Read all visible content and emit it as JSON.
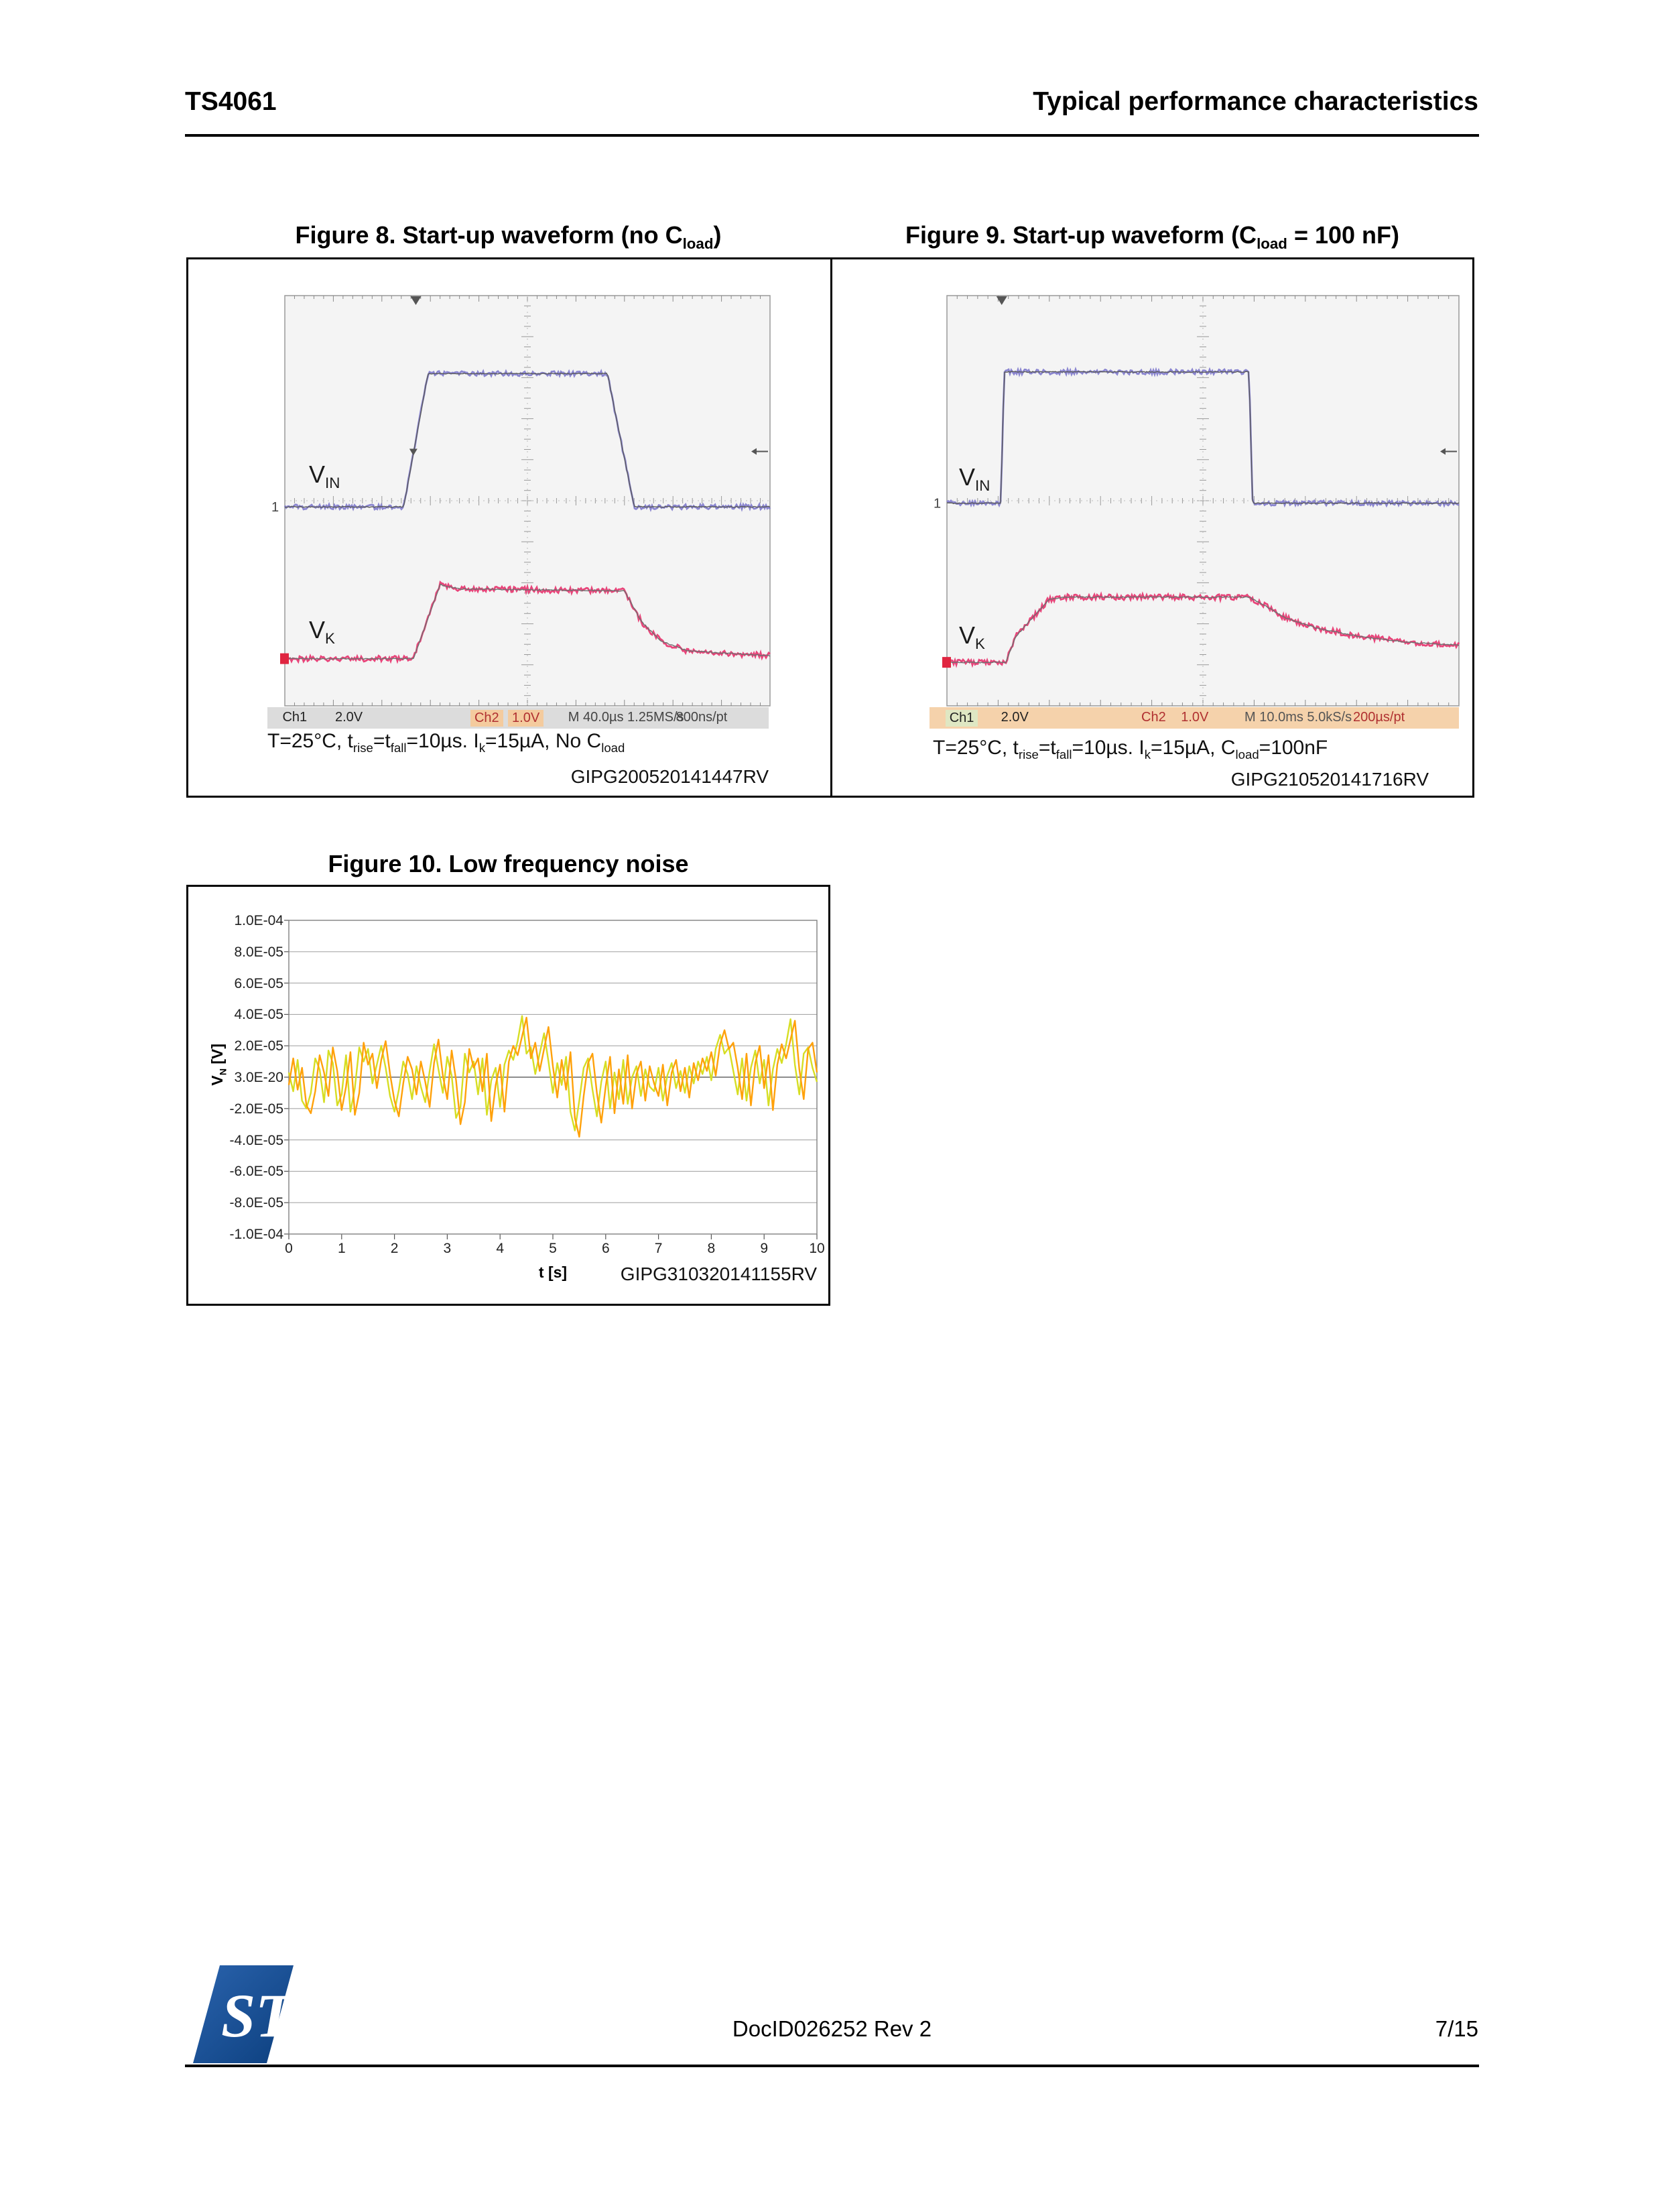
{
  "header": {
    "product": "TS4061",
    "section": "Typical performance characteristics"
  },
  "footer": {
    "doc_id": "DocID026252 Rev 2",
    "page_num": "7/15",
    "logo_colors": {
      "blue_dark": "#0c3f7e",
      "blue_light": "#2a63ad"
    }
  },
  "figure8": {
    "title_segs": [
      {
        "t": "Figure 8. Start-up waveform (no C"
      },
      {
        "t": "load",
        "s": 1
      },
      {
        "t": ")"
      }
    ],
    "caption_segs": [
      {
        "t": "T=25°C, t"
      },
      {
        "t": "rise",
        "s": 1
      },
      {
        "t": "=t"
      },
      {
        "t": "fall",
        "s": 1
      },
      {
        "t": "=10µs. I"
      },
      {
        "t": "k",
        "s": 1
      },
      {
        "t": "=15µA, No C"
      },
      {
        "t": "load",
        "s": 1
      }
    ],
    "ref": "GIPG200520141447RV",
    "labels": {
      "vin": [
        {
          "t": "V"
        },
        {
          "t": "IN",
          "s": 1
        }
      ],
      "vk": [
        {
          "t": "V"
        },
        {
          "t": "K",
          "s": 1
        }
      ]
    },
    "status": {
      "bg": "#dcdcdc",
      "items": [
        {
          "t": "Ch1",
          "c": "#222",
          "x": 0.03
        },
        {
          "t": "2.0V",
          "c": "#222",
          "x": 0.135
        },
        {
          "t": "Ch2",
          "c": "#b03030",
          "x": 0.405,
          "hl": "#f4cb9e"
        },
        {
          "t": "1.0V",
          "c": "#b03030",
          "x": 0.48,
          "hl": "#f4cb9e"
        },
        {
          "t": "M 40.0µs 1.25MS/s",
          "c": "#444",
          "x": 0.6
        },
        {
          "t": "800ns/pt",
          "c": "#444",
          "x": 0.815
        }
      ]
    }
  },
  "figure9": {
    "title_segs": [
      {
        "t": "Figure 9. Start-up waveform (C"
      },
      {
        "t": "load",
        "s": 1
      },
      {
        "t": " = 100 nF)"
      }
    ],
    "caption_segs": [
      {
        "t": "T=25°C, t"
      },
      {
        "t": "rise",
        "s": 1
      },
      {
        "t": "=t"
      },
      {
        "t": "fall",
        "s": 1
      },
      {
        "t": "=10µs. I"
      },
      {
        "t": "k",
        "s": 1
      },
      {
        "t": "=15µA, C"
      },
      {
        "t": "load",
        "s": 1
      },
      {
        "t": "=100nF"
      }
    ],
    "ref": "GIPG210520141716RV",
    "labels": {
      "vin": [
        {
          "t": "V"
        },
        {
          "t": "IN",
          "s": 1
        }
      ],
      "vk": [
        {
          "t": "V"
        },
        {
          "t": "K",
          "s": 1
        }
      ]
    },
    "status": {
      "bg": "#f5d2ab",
      "items": [
        {
          "t": "Ch1",
          "c": "#222",
          "x": 0.03,
          "hl": "#dfe7c3"
        },
        {
          "t": "2.0V",
          "c": "#222",
          "x": 0.135
        },
        {
          "t": "Ch2",
          "c": "#b03030",
          "x": 0.4
        },
        {
          "t": "1.0V",
          "c": "#b03030",
          "x": 0.475
        },
        {
          "t": "M 10.0ms 5.0kS/s",
          "c": "#555",
          "x": 0.595
        },
        {
          "t": "200µs/pt",
          "c": "#b03030",
          "x": 0.8
        }
      ]
    }
  },
  "figure10": {
    "title": "Figure 10. Low frequency noise",
    "ref": "GIPG310320141155RV",
    "ylabel_segs": [
      {
        "t": "V"
      },
      {
        "t": "N",
        "s": 1
      },
      {
        "t": " [V]"
      }
    ],
    "xlabel": "t [s]"
  },
  "chart_data": [
    {
      "id": "fig8_scope",
      "type": "line",
      "title": "Start-up waveform (no Cload)",
      "timebase": "M 40.0µs",
      "sample_rate": "1.25MS/s",
      "resolution": "800ns/pt",
      "ch1_scale": "2.0V",
      "ch2_scale": "1.0V",
      "x_units": "screen fraction (10 divisions)",
      "y_units": "screen fraction (0 = top)",
      "series": [
        {
          "name": "VIN",
          "color": "#8a85d0",
          "core": "#5a5a5a",
          "noise": 0.006,
          "points": [
            [
              0,
              0.515
            ],
            [
              0.245,
              0.515
            ],
            [
              0.255,
              0.45
            ],
            [
              0.295,
              0.19
            ],
            [
              0.665,
              0.19
            ],
            [
              0.675,
              0.25
            ],
            [
              0.72,
              0.515
            ],
            [
              1,
              0.515
            ]
          ]
        },
        {
          "name": "VK",
          "color": "#e8457a",
          "core": "#6f6f6f",
          "noise": 0.007,
          "points": [
            [
              0,
              0.885
            ],
            [
              0.265,
              0.885
            ],
            [
              0.32,
              0.705
            ],
            [
              0.36,
              0.715
            ],
            [
              0.7,
              0.72
            ],
            [
              0.735,
              0.795
            ],
            [
              0.775,
              0.842
            ],
            [
              0.83,
              0.866
            ],
            [
              1,
              0.878
            ]
          ]
        }
      ],
      "markers": {
        "trig_top_x": 0.27,
        "edge_arrow_y": 0.38,
        "edge_arrow2": [
          0.265,
          0.38
        ],
        "ch1_y": 0.515,
        "ch2_y": 0.885
      }
    },
    {
      "id": "fig9_scope",
      "type": "line",
      "title": "Start-up waveform (Cload = 100 nF)",
      "timebase": "M 10.0ms",
      "sample_rate": "5.0kS/s",
      "resolution": "200µs/pt",
      "ch1_scale": "2.0V",
      "ch2_scale": "1.0V",
      "x_units": "screen fraction (10 divisions)",
      "y_units": "screen fraction (0 = top)",
      "series": [
        {
          "name": "VIN",
          "color": "#8a85d0",
          "core": "#5a5a5a",
          "noise": 0.006,
          "points": [
            [
              0,
              0.506
            ],
            [
              0.105,
              0.506
            ],
            [
              0.112,
              0.186
            ],
            [
              0.59,
              0.186
            ],
            [
              0.597,
              0.506
            ],
            [
              1,
              0.506
            ]
          ]
        },
        {
          "name": "VK",
          "color": "#e8457a",
          "core": "#6f6f6f",
          "noise": 0.007,
          "points": [
            [
              0,
              0.894
            ],
            [
              0.115,
              0.894
            ],
            [
              0.135,
              0.83
            ],
            [
              0.2,
              0.74
            ],
            [
              0.23,
              0.735
            ],
            [
              0.59,
              0.735
            ],
            [
              0.62,
              0.755
            ],
            [
              0.66,
              0.785
            ],
            [
              0.72,
              0.81
            ],
            [
              0.8,
              0.83
            ],
            [
              0.9,
              0.845
            ],
            [
              1,
              0.852
            ]
          ]
        }
      ],
      "markers": {
        "trig_top_x": 0.107,
        "edge_arrow_y": 0.38,
        "edge_arrow2": null,
        "ch1_y": 0.506,
        "ch2_y": 0.894
      }
    },
    {
      "id": "fig10_noise",
      "type": "line",
      "title": "Low frequency noise",
      "xlabel": "t [s]",
      "ylabel": "VN [V]",
      "xlim": [
        0,
        10
      ],
      "ylim": [
        -0.0001,
        0.0001
      ],
      "x_ticks": [
        "0",
        "1",
        "2",
        "3",
        "4",
        "5",
        "6",
        "7",
        "8",
        "9",
        "10"
      ],
      "y_tick_labels": [
        "1.0E-04",
        "8.0E-05",
        "6.0E-05",
        "4.0E-05",
        "2.0E-05",
        "3.0E-20",
        "-2.0E-05",
        "-4.0E-05",
        "-6.0E-05",
        "-8.0E-05",
        "-1.0E-04"
      ],
      "grid": true,
      "legend": "none",
      "value_unit": 1e-05,
      "x_start": 0,
      "x_step": 0.0833333,
      "series": [
        {
          "name": "noise_yellow",
          "color": "#d6de23",
          "values": [
            0.3,
            -0.9,
            1.1,
            -1.5,
            -2.0,
            -1.0,
            1.2,
            0.5,
            -1.6,
            1.7,
            0.9,
            -1.8,
            -1.1,
            1.4,
            -2.2,
            -0.7,
            1.9,
            1.0,
            1.8,
            -0.4,
            0.8,
            2.0,
            0.6,
            -1.2,
            -2.2,
            -0.8,
            1.0,
            0.2,
            -1.4,
            0.7,
            -0.6,
            -1.6,
            0.4,
            2.1,
            0.5,
            -1.0,
            1.3,
            0.1,
            -2.6,
            -1.9,
            1.5,
            0.3,
            1.0,
            -1.1,
            1.2,
            -2.4,
            -0.2,
            0.6,
            -1.9,
            0.8,
            1.7,
            1.1,
            2.3,
            3.9,
            1.5,
            1.9,
            0.2,
            1.5,
            2.8,
            1.0,
            -1.0,
            0.9,
            -0.5,
            1.3,
            -2.2,
            -3.4,
            -1.5,
            0.6,
            1.2,
            -0.8,
            -2.5,
            -0.3,
            1.0,
            -2.0,
            0.3,
            -1.4,
            1.1,
            -1.7,
            0.0,
            0.7,
            -1.2,
            0.5,
            -0.6,
            -0.9,
            0.6,
            -1.5,
            0.1,
            0.9,
            -0.7,
            0.4,
            -1.0,
            0.7,
            -0.4,
            1.0,
            0.2,
            1.3,
            -0.2,
            1.8,
            2.7,
            1.5,
            1.9,
            0.4,
            -1.1,
            1.2,
            -1.5,
            0.6,
            1.7,
            -0.4,
            1.1,
            -1.8,
            0.5,
            1.8,
            0.9,
            2.1,
            3.7,
            0.8,
            -1.1,
            1.5,
            1.9,
            0.6,
            -0.3
          ]
        },
        {
          "name": "noise_orange",
          "color": "#ffa10a",
          "values": [
            -0.5,
            1.2,
            -0.8,
            0.6,
            -1.8,
            -2.3,
            -0.9,
            1.4,
            0.3,
            -1.2,
            1.9,
            0.4,
            -2.1,
            -0.6,
            1.6,
            -2.4,
            -1.0,
            2.2,
            0.8,
            1.5,
            -0.7,
            1.1,
            2.3,
            0.2,
            -1.5,
            -2.5,
            -0.4,
            1.3,
            0.5,
            -1.1,
            1.0,
            -0.3,
            -1.9,
            0.9,
            2.4,
            0.1,
            -1.4,
            1.7,
            -0.2,
            -3.0,
            -1.6,
            1.8,
            0.6,
            1.2,
            -0.9,
            1.5,
            -2.8,
            -0.5,
            0.8,
            -2.2,
            1.0,
            2.0,
            1.4,
            2.6,
            3.8,
            1.2,
            2.2,
            0.4,
            1.8,
            3.2,
            0.7,
            -1.3,
            1.1,
            -0.8,
            1.6,
            -2.6,
            -3.8,
            -1.2,
            0.9,
            1.5,
            -1.0,
            -2.9,
            -0.6,
            1.3,
            -2.3,
            0.5,
            -1.7,
            1.4,
            -2.0,
            0.2,
            1.0,
            -1.5,
            0.7,
            -0.4,
            -1.2,
            0.8,
            -1.8,
            0.3,
            1.1,
            -0.9,
            0.6,
            -1.3,
            0.9,
            -0.2,
            1.2,
            0.4,
            1.6,
            0.1,
            2.1,
            3.0,
            1.8,
            2.2,
            0.6,
            -1.4,
            1.5,
            -1.8,
            0.9,
            2.0,
            -0.7,
            1.4,
            -2.1,
            0.8,
            2.1,
            1.2,
            2.4,
            3.6,
            0.5,
            -1.4,
            1.8,
            2.2,
            0.3
          ]
        }
      ]
    }
  ]
}
